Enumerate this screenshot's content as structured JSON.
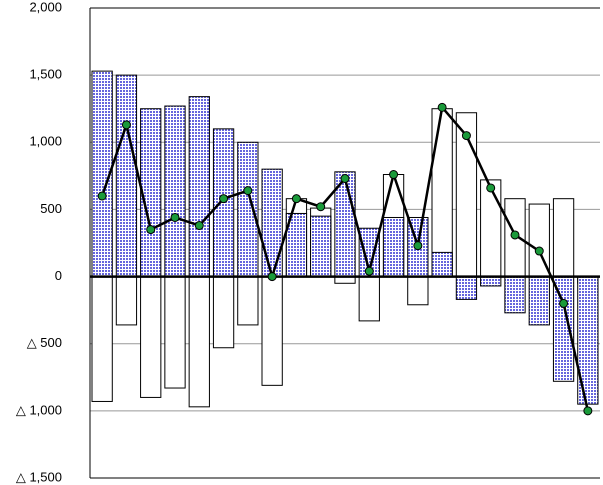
{
  "chart_data": {
    "type": "bar_line",
    "categories": [
      null,
      null,
      null,
      null,
      null,
      null,
      null,
      null,
      null,
      null,
      null,
      null,
      null,
      null,
      null,
      null,
      null,
      null,
      null,
      null,
      null
    ],
    "series": [
      {
        "type": "bar",
        "color": "#ffffff",
        "values": [
          -930,
          -360,
          -900,
          -830,
          -970,
          -530,
          -360,
          -810,
          580,
          510,
          -50,
          -330,
          760,
          -210,
          1250,
          1220,
          720,
          580,
          540,
          580,
          -50
        ]
      },
      {
        "type": "bar",
        "color": "#6666dd",
        "values": [
          1530,
          1500,
          1250,
          1270,
          1340,
          1100,
          1000,
          800,
          470,
          450,
          780,
          360,
          440,
          440,
          180,
          -170,
          -70,
          -270,
          -360,
          -780,
          -950
        ]
      },
      {
        "type": "line",
        "color": "#000000",
        "marker_color": "#1a9a3a",
        "values": [
          600,
          1130,
          350,
          440,
          380,
          580,
          640,
          0,
          580,
          520,
          730,
          40,
          760,
          230,
          1260,
          1050,
          660,
          310,
          190,
          -200,
          -1000
        ]
      }
    ],
    "ylim": [
      -1500,
      2000
    ],
    "yticks": [
      {
        "value": 2000,
        "label": "2,000"
      },
      {
        "value": 1500,
        "label": "1,500"
      },
      {
        "value": 1000,
        "label": "1,000"
      },
      500,
      0,
      {
        "value": -500,
        "label": "△ 500"
      },
      {
        "value": -1000,
        "label": "△ 1,000"
      },
      {
        "value": -1500,
        "label": "△ 1,500"
      }
    ],
    "grid": true
  }
}
